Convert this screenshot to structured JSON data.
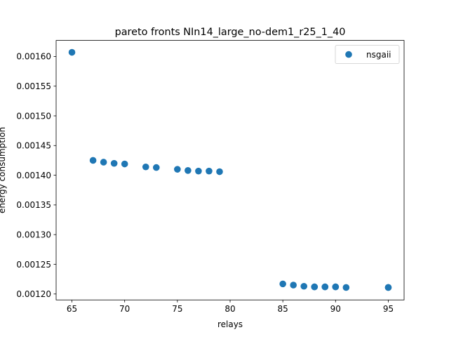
{
  "chart_data": {
    "type": "scatter",
    "title": "pareto fronts NIn14_large_no-dem1_r25_1_40",
    "xlabel": "relays",
    "ylabel": "energy consumption",
    "xlim": [
      63.5,
      96.5
    ],
    "ylim": [
      0.00119,
      0.001627
    ],
    "x_ticks": [
      65,
      70,
      75,
      80,
      85,
      90,
      95
    ],
    "x_tick_labels": [
      "65",
      "70",
      "75",
      "80",
      "85",
      "90",
      "95"
    ],
    "y_ticks": [
      0.0012,
      0.00125,
      0.0013,
      0.00135,
      0.0014,
      0.00145,
      0.0015,
      0.00155,
      0.0016
    ],
    "y_tick_labels": [
      "0.00120",
      "0.00125",
      "0.00130",
      "0.00135",
      "0.00140",
      "0.00145",
      "0.00150",
      "0.00155",
      "0.00160"
    ],
    "grid": false,
    "legend_position": "top-right",
    "series": [
      {
        "name": "nsgaii",
        "color": "#1f77b4",
        "x": [
          65,
          67,
          68,
          69,
          70,
          72,
          73,
          75,
          76,
          77,
          78,
          79,
          85,
          86,
          87,
          88,
          88,
          89,
          89,
          90,
          90,
          91,
          95,
          95
        ],
        "y": [
          0.001607,
          0.001425,
          0.001422,
          0.00142,
          0.001419,
          0.001414,
          0.001413,
          0.00141,
          0.001408,
          0.001407,
          0.001407,
          0.001406,
          0.001217,
          0.001215,
          0.001213,
          0.001212,
          0.001212,
          0.001212,
          0.001212,
          0.001212,
          0.001212,
          0.001211,
          0.001211,
          0.001211
        ]
      }
    ]
  }
}
